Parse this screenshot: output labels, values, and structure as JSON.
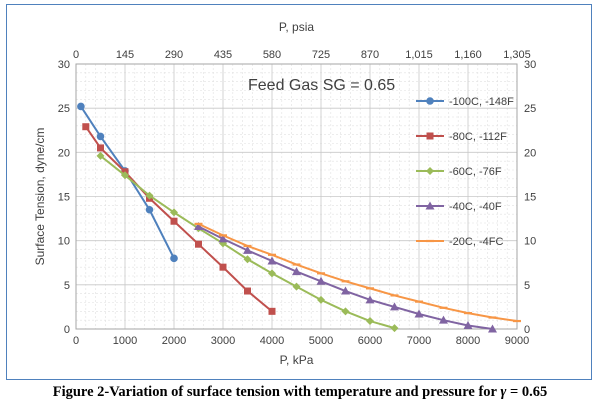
{
  "chart_data": {
    "type": "line",
    "annotation": "Feed Gas SG = 0.65",
    "xlabel": "P, kPa",
    "ylabel": "Surface Tension, dyne/cm",
    "x2label": "P, psia",
    "xlim": [
      0,
      9000
    ],
    "ylim": [
      0,
      30
    ],
    "x_ticks": [
      0,
      1000,
      2000,
      3000,
      4000,
      5000,
      6000,
      7000,
      8000,
      9000
    ],
    "y_ticks": [
      0,
      5,
      10,
      15,
      20,
      25,
      30
    ],
    "x2_ticks": [
      "0",
      "145",
      "290",
      "435",
      "580",
      "725",
      "870",
      "1,015",
      "1,160",
      "1,305"
    ],
    "grid": true,
    "legend_position": "right",
    "series": [
      {
        "name": "-100C, -148F",
        "color": "#4f81bd",
        "marker": "circle",
        "x": [
          100,
          500,
          1000,
          1500,
          2000
        ],
        "y": [
          25.2,
          21.8,
          17.9,
          13.5,
          8.0
        ]
      },
      {
        "name": "-80C, -112F",
        "color": "#c0504d",
        "marker": "square",
        "x": [
          200,
          500,
          1000,
          1500,
          2000,
          2500,
          3000,
          3500,
          4000
        ],
        "y": [
          22.9,
          20.5,
          17.8,
          14.8,
          12.2,
          9.6,
          7.0,
          4.3,
          2.0
        ]
      },
      {
        "name": "-60C, -76F",
        "color": "#9bbb59",
        "marker": "diamond",
        "x": [
          500,
          1000,
          1500,
          2000,
          2500,
          3000,
          3500,
          4000,
          4500,
          5000,
          5500,
          6000,
          6500
        ],
        "y": [
          19.6,
          17.4,
          15.1,
          13.2,
          11.4,
          9.7,
          7.9,
          6.3,
          4.8,
          3.3,
          2.0,
          0.9,
          0.1
        ]
      },
      {
        "name": "-40C, -40F",
        "color": "#8064a2",
        "marker": "triangle",
        "x": [
          2500,
          3000,
          3500,
          4000,
          4500,
          5000,
          5500,
          6000,
          6500,
          7000,
          7500,
          8000,
          8500
        ],
        "y": [
          11.6,
          10.2,
          8.9,
          7.7,
          6.5,
          5.4,
          4.3,
          3.3,
          2.5,
          1.7,
          1.0,
          0.4,
          0.0
        ]
      },
      {
        "name": "-20C, -4FC",
        "color": "#f79646",
        "marker": "dash",
        "x": [
          2500,
          3000,
          3500,
          4000,
          4500,
          5000,
          5500,
          6000,
          6500,
          7000,
          7500,
          8000,
          8500,
          9000
        ],
        "y": [
          11.9,
          10.6,
          9.4,
          8.4,
          7.3,
          6.3,
          5.4,
          4.6,
          3.8,
          3.1,
          2.4,
          1.8,
          1.3,
          0.9
        ]
      }
    ]
  },
  "caption": {
    "prefix": "Figure 2-Variation of surface tension with temperature and pressure for ",
    "symbol": "γ",
    "suffix": " = 0.65"
  }
}
